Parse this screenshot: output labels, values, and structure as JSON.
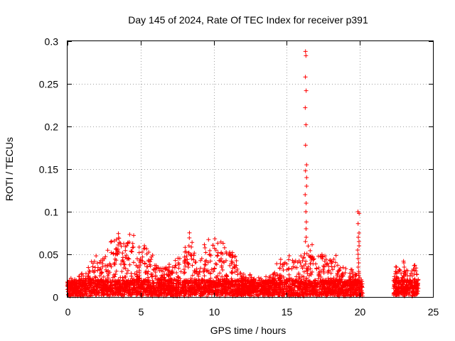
{
  "chart_data": {
    "type": "scatter",
    "title": "Day 145 of 2024, Rate Of TEC Index for receiver p391",
    "xlabel": "GPS time / hours",
    "ylabel": "ROTI / TECUs",
    "xlim": [
      0,
      25
    ],
    "ylim": [
      0,
      0.3
    ],
    "xticks": [
      0,
      5,
      10,
      15,
      20,
      25
    ],
    "yticks": [
      0,
      0.05,
      0.1,
      0.15,
      0.2,
      0.25,
      0.3
    ],
    "ytick_labels": [
      "0",
      "0.05",
      "0.1",
      "0.15",
      "0.2",
      "0.25",
      "0.3"
    ],
    "grid": true,
    "marker": "plus",
    "color": "#ff0000",
    "envelope": {
      "note": "dense cloud of ROTI points; upper edge (hours, TECUs)",
      "points": [
        [
          0.0,
          0.02
        ],
        [
          1.0,
          0.03
        ],
        [
          1.5,
          0.045
        ],
        [
          2.5,
          0.06
        ],
        [
          3.5,
          0.085
        ],
        [
          4.5,
          0.08
        ],
        [
          5.2,
          0.07
        ],
        [
          6.0,
          0.05
        ],
        [
          7.0,
          0.04
        ],
        [
          8.0,
          0.06
        ],
        [
          8.3,
          0.085
        ],
        [
          9.0,
          0.045
        ],
        [
          9.5,
          0.075
        ],
        [
          10.3,
          0.068
        ],
        [
          11.3,
          0.066
        ],
        [
          12.0,
          0.03
        ],
        [
          13.0,
          0.025
        ],
        [
          14.0,
          0.035
        ],
        [
          15.0,
          0.055
        ],
        [
          16.0,
          0.06
        ],
        [
          16.3,
          0.065
        ],
        [
          17.0,
          0.065
        ],
        [
          18.0,
          0.055
        ],
        [
          19.0,
          0.04
        ],
        [
          20.0,
          0.03
        ]
      ],
      "ranges": [
        [
          0.0,
          20.2
        ],
        [
          22.3,
          24.0
        ]
      ]
    },
    "spikes": [
      {
        "x": 16.3,
        "values": [
          0.288,
          0.283,
          0.258,
          0.242,
          0.222,
          0.202,
          0.178,
          0.155,
          0.148,
          0.14,
          0.13,
          0.12,
          0.11,
          0.1,
          0.088,
          0.08,
          0.07,
          0.065
        ]
      },
      {
        "x": 19.9,
        "values": [
          0.1,
          0.098,
          0.086,
          0.075,
          0.07,
          0.065,
          0.06,
          0.055,
          0.05,
          0.045,
          0.04,
          0.035,
          0.03,
          0.025
        ]
      },
      {
        "x": 23.0,
        "values": [
          0.042,
          0.04,
          0.035,
          0.03,
          0.025,
          0.02,
          0.015,
          0.01
        ]
      }
    ]
  }
}
